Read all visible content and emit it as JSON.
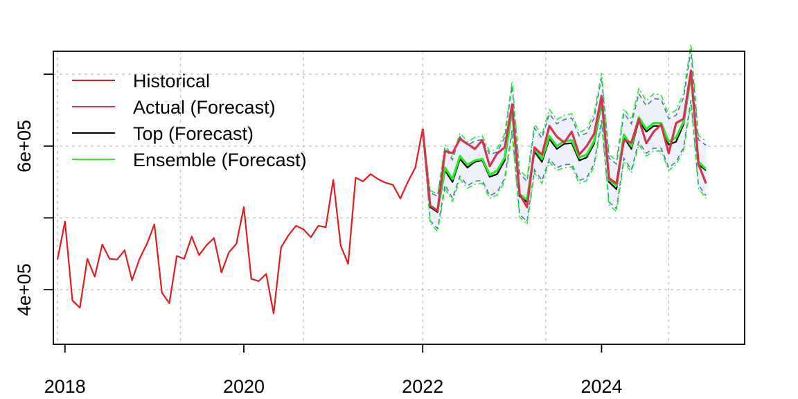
{
  "chart_data": {
    "type": "line",
    "title": "",
    "xlabel": "",
    "ylabel": "",
    "xlim": [
      2017.87,
      2025.6
    ],
    "ylim": [
      324000,
      732000
    ],
    "x_ticks": [
      2018,
      2020,
      2022,
      2024
    ],
    "x_tick_labels": [
      "2018",
      "2020",
      "2022",
      "2024"
    ],
    "y_ticks": [
      400000,
      600000
    ],
    "y_tick_labels": [
      "4e+05",
      "6e+05"
    ],
    "y_minor_ticks": [
      400000,
      500000,
      600000,
      700000
    ],
    "x_grid": [
      2017.917,
      2019.292,
      2020.667,
      2022.0,
      2023.375,
      2024.75
    ],
    "y_grid": [
      400000,
      500000,
      600000,
      700000
    ],
    "grid": true,
    "legend_position": "top-left",
    "legend": [
      {
        "label": "Historical",
        "color": "#e41a1c"
      },
      {
        "label": "Actual (Forecast)",
        "color": "#d6334e"
      },
      {
        "label": "Top (Forecast)",
        "color": "#000000"
      },
      {
        "label": "Ensemble (Forecast)",
        "color": "#22ee22"
      }
    ],
    "historical": {
      "name": "Historical",
      "color": "#e41a1c",
      "start": [
        2017,
        12
      ],
      "values": [
        442000,
        495000,
        385000,
        375000,
        443000,
        418000,
        463000,
        443000,
        442000,
        455000,
        413000,
        443000,
        464000,
        491000,
        396000,
        381000,
        447000,
        443000,
        474000,
        448000,
        462000,
        472000,
        424000,
        452000,
        464000,
        515000,
        415000,
        412000,
        422000,
        367000,
        459000,
        476000,
        489000,
        484000,
        473000,
        489000,
        487000,
        553000,
        461000,
        436000,
        556000,
        551000,
        561000,
        554000,
        549000,
        546000,
        527000,
        550000,
        570000,
        624000
      ]
    },
    "actual_forecast": {
      "name": "Actual (Forecast)",
      "color": "#d6334e",
      "start": [
        2022,
        1
      ],
      "values": [
        624000,
        517000,
        510000,
        593000,
        590000,
        610000,
        603000,
        596000,
        608000,
        572000,
        590000,
        598000,
        658000,
        533000,
        515000,
        598000,
        588000,
        628000,
        613000,
        605000,
        620000,
        588000,
        600000,
        617000,
        670000,
        555000,
        548000,
        608000,
        605000,
        638000,
        604000,
        620000,
        630000,
        590000,
        632000,
        638000,
        705000,
        575000,
        548000
      ]
    },
    "top_forecast": {
      "name": "Top (Forecast)",
      "color": "#000000",
      "start": [
        2022,
        1
      ],
      "values": [
        624000,
        515000,
        508000,
        566000,
        550000,
        582000,
        570000,
        578000,
        580000,
        557000,
        561000,
        580000,
        648000,
        530000,
        522000,
        592000,
        578000,
        610000,
        596000,
        603000,
        604000,
        580000,
        584000,
        603000,
        660000,
        550000,
        540000,
        612000,
        596000,
        636000,
        620000,
        628000,
        628000,
        602000,
        606000,
        630000,
        697000,
        575000,
        566000
      ]
    },
    "ensemble_forecast": {
      "name": "Ensemble (Forecast)",
      "color": "#22ee22",
      "start": [
        2022,
        1
      ],
      "values": [
        624000,
        517000,
        510000,
        570000,
        554000,
        586000,
        574000,
        580000,
        582000,
        560000,
        566000,
        584000,
        651000,
        533000,
        525000,
        596000,
        582000,
        614000,
        600000,
        607000,
        608000,
        584000,
        588000,
        607000,
        665000,
        553000,
        545000,
        616000,
        600000,
        640000,
        624000,
        632000,
        632000,
        606000,
        612000,
        634000,
        701000,
        578000,
        568000
      ]
    },
    "bands": [
      {
        "lower": [
          624000,
          496000,
          485000,
          546000,
          527000,
          558000,
          545000,
          551000,
          552000,
          531000,
          536000,
          555000,
          622000,
          505000,
          495000,
          567000,
          552000,
          582000,
          570000,
          574000,
          575000,
          552000,
          556000,
          575000,
          636000,
          522000,
          513000,
          583000,
          567000,
          606000,
          590000,
          597000,
          597000,
          570000,
          578000,
          598000,
          664000,
          546000,
          531000
        ],
        "upper": [
          624000,
          535000,
          530000,
          598000,
          581000,
          613000,
          601000,
          607000,
          609000,
          588000,
          592000,
          612000,
          684000,
          562000,
          551000,
          625000,
          611000,
          645000,
          631000,
          637000,
          639000,
          614000,
          618000,
          639000,
          696000,
          583000,
          575000,
          646000,
          631000,
          673000,
          656000,
          666000,
          665000,
          638000,
          643000,
          667000,
          734000,
          609000,
          601000
        ]
      },
      {
        "lower": [
          624000,
          493000,
          481000,
          541000,
          523000,
          554000,
          541000,
          547000,
          548000,
          527000,
          532000,
          551000,
          617000,
          501000,
          491000,
          563000,
          548000,
          578000,
          566000,
          570000,
          571000,
          548000,
          552000,
          571000,
          632000,
          518000,
          509000,
          579000,
          563000,
          602000,
          586000,
          593000,
          593000,
          566000,
          574000,
          594000,
          659000,
          541000,
          527000
        ],
        "upper": [
          624000,
          538000,
          533000,
          602000,
          585000,
          618000,
          606000,
          612000,
          614000,
          592000,
          597000,
          617000,
          690000,
          567000,
          556000,
          630000,
          616000,
          651000,
          637000,
          643000,
          645000,
          619000,
          624000,
          645000,
          702000,
          588000,
          580000,
          652000,
          637000,
          680000,
          663000,
          673000,
          671000,
          644000,
          650000,
          674000,
          742000,
          615000,
          607000
        ]
      }
    ]
  }
}
